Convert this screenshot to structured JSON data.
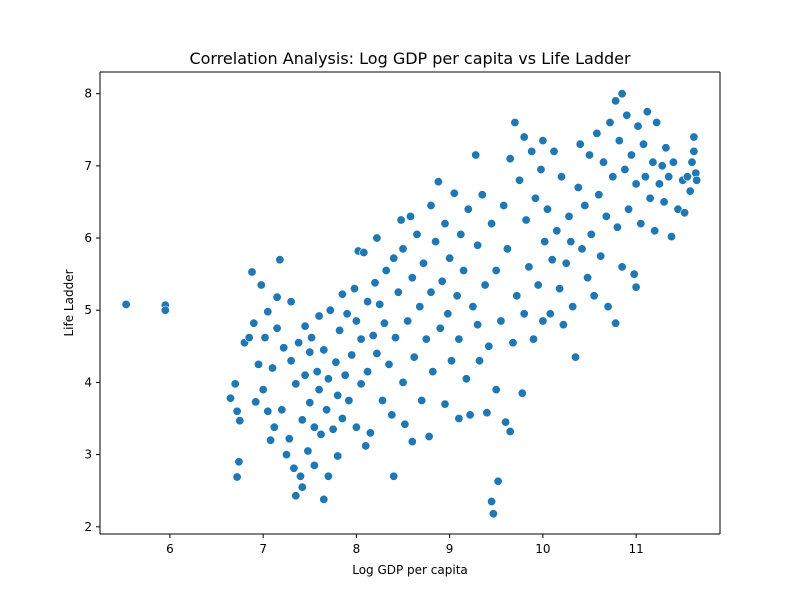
{
  "chart_data": {
    "type": "scatter",
    "title": "Correlation Analysis: Log GDP per capita vs Life Ladder",
    "xlabel": "Log GDP per capita",
    "ylabel": "Life Ladder",
    "xlim": [
      5.25,
      11.9
    ],
    "ylim": [
      1.9,
      8.3
    ],
    "xticks": [
      6,
      7,
      8,
      9,
      10,
      11
    ],
    "yticks": [
      2,
      3,
      4,
      5,
      6,
      7,
      8
    ],
    "grid": false,
    "legend": "none",
    "series": [
      {
        "color": "#1f77b4",
        "points": [
          [
            5.53,
            5.08
          ],
          [
            5.95,
            5.07
          ],
          [
            5.95,
            5.0
          ],
          [
            6.65,
            3.78
          ],
          [
            6.7,
            3.98
          ],
          [
            6.72,
            3.6
          ],
          [
            6.72,
            2.69
          ],
          [
            6.74,
            2.9
          ],
          [
            6.75,
            3.47
          ],
          [
            6.8,
            4.55
          ],
          [
            6.85,
            4.62
          ],
          [
            6.88,
            5.53
          ],
          [
            6.9,
            4.82
          ],
          [
            6.92,
            3.73
          ],
          [
            6.95,
            4.25
          ],
          [
            6.98,
            5.35
          ],
          [
            7.0,
            3.9
          ],
          [
            7.02,
            4.62
          ],
          [
            7.05,
            4.98
          ],
          [
            7.05,
            3.6
          ],
          [
            7.08,
            3.2
          ],
          [
            7.1,
            4.2
          ],
          [
            7.12,
            3.38
          ],
          [
            7.15,
            5.18
          ],
          [
            7.15,
            4.75
          ],
          [
            7.18,
            5.7
          ],
          [
            7.2,
            3.62
          ],
          [
            7.22,
            4.48
          ],
          [
            7.25,
            3.0
          ],
          [
            7.28,
            3.22
          ],
          [
            7.3,
            5.12
          ],
          [
            7.3,
            4.3
          ],
          [
            7.33,
            2.81
          ],
          [
            7.35,
            2.43
          ],
          [
            7.35,
            3.98
          ],
          [
            7.38,
            4.55
          ],
          [
            7.4,
            2.7
          ],
          [
            7.42,
            2.55
          ],
          [
            7.42,
            3.48
          ],
          [
            7.45,
            4.78
          ],
          [
            7.45,
            4.1
          ],
          [
            7.48,
            3.05
          ],
          [
            7.5,
            4.42
          ],
          [
            7.5,
            3.72
          ],
          [
            7.52,
            4.62
          ],
          [
            7.55,
            2.85
          ],
          [
            7.55,
            3.38
          ],
          [
            7.58,
            4.15
          ],
          [
            7.6,
            4.92
          ],
          [
            7.6,
            3.9
          ],
          [
            7.62,
            3.28
          ],
          [
            7.65,
            2.38
          ],
          [
            7.65,
            4.45
          ],
          [
            7.68,
            3.62
          ],
          [
            7.7,
            2.7
          ],
          [
            7.7,
            4.05
          ],
          [
            7.72,
            5.0
          ],
          [
            7.75,
            3.35
          ],
          [
            7.78,
            4.28
          ],
          [
            7.8,
            2.98
          ],
          [
            7.8,
            3.82
          ],
          [
            7.82,
            4.72
          ],
          [
            7.85,
            5.22
          ],
          [
            7.85,
            3.5
          ],
          [
            7.88,
            4.1
          ],
          [
            7.9,
            4.95
          ],
          [
            7.92,
            3.75
          ],
          [
            7.95,
            4.38
          ],
          [
            7.98,
            5.3
          ],
          [
            8.0,
            3.38
          ],
          [
            8.0,
            4.85
          ],
          [
            8.02,
            5.82
          ],
          [
            8.05,
            3.98
          ],
          [
            8.05,
            4.6
          ],
          [
            8.08,
            5.8
          ],
          [
            8.1,
            3.12
          ],
          [
            8.12,
            5.12
          ],
          [
            8.12,
            4.15
          ],
          [
            8.15,
            3.3
          ],
          [
            8.18,
            4.65
          ],
          [
            8.2,
            5.38
          ],
          [
            8.22,
            4.4
          ],
          [
            8.22,
            6.0
          ],
          [
            8.25,
            5.08
          ],
          [
            8.28,
            3.75
          ],
          [
            8.3,
            4.82
          ],
          [
            8.32,
            5.55
          ],
          [
            8.35,
            4.25
          ],
          [
            8.38,
            3.55
          ],
          [
            8.4,
            5.72
          ],
          [
            8.4,
            2.7
          ],
          [
            8.42,
            4.62
          ],
          [
            8.45,
            5.25
          ],
          [
            8.48,
            6.25
          ],
          [
            8.5,
            4.0
          ],
          [
            8.5,
            5.85
          ],
          [
            8.52,
            3.42
          ],
          [
            8.55,
            4.85
          ],
          [
            8.58,
            6.3
          ],
          [
            8.6,
            3.18
          ],
          [
            8.6,
            5.45
          ],
          [
            8.62,
            4.35
          ],
          [
            8.65,
            6.05
          ],
          [
            8.68,
            5.05
          ],
          [
            8.7,
            3.75
          ],
          [
            8.72,
            5.65
          ],
          [
            8.75,
            4.6
          ],
          [
            8.78,
            3.25
          ],
          [
            8.8,
            6.45
          ],
          [
            8.8,
            5.25
          ],
          [
            8.82,
            4.15
          ],
          [
            8.85,
            5.95
          ],
          [
            8.88,
            6.78
          ],
          [
            8.9,
            4.75
          ],
          [
            8.92,
            5.4
          ],
          [
            8.95,
            3.7
          ],
          [
            8.95,
            6.2
          ],
          [
            8.98,
            4.95
          ],
          [
            9.0,
            5.72
          ],
          [
            9.02,
            4.3
          ],
          [
            9.05,
            6.62
          ],
          [
            9.08,
            5.2
          ],
          [
            9.1,
            3.5
          ],
          [
            9.1,
            4.6
          ],
          [
            9.12,
            6.05
          ],
          [
            9.15,
            5.55
          ],
          [
            9.18,
            4.05
          ],
          [
            9.2,
            6.4
          ],
          [
            9.22,
            3.55
          ],
          [
            9.25,
            5.05
          ],
          [
            9.28,
            7.15
          ],
          [
            9.3,
            4.8
          ],
          [
            9.3,
            5.9
          ],
          [
            9.32,
            4.3
          ],
          [
            9.35,
            6.6
          ],
          [
            9.38,
            5.35
          ],
          [
            9.4,
            3.58
          ],
          [
            9.42,
            4.5
          ],
          [
            9.45,
            6.2
          ],
          [
            9.45,
            2.35
          ],
          [
            9.47,
            2.18
          ],
          [
            9.5,
            5.55
          ],
          [
            9.52,
            2.63
          ],
          [
            9.5,
            3.9
          ],
          [
            9.55,
            4.85
          ],
          [
            9.58,
            6.45
          ],
          [
            9.6,
            3.45
          ],
          [
            9.62,
            5.85
          ],
          [
            9.65,
            3.32
          ],
          [
            9.65,
            7.1
          ],
          [
            9.68,
            4.55
          ],
          [
            9.7,
            7.6
          ],
          [
            9.72,
            5.2
          ],
          [
            9.75,
            6.8
          ],
          [
            9.78,
            3.85
          ],
          [
            9.8,
            4.95
          ],
          [
            9.8,
            7.4
          ],
          [
            9.82,
            6.25
          ],
          [
            9.85,
            5.6
          ],
          [
            9.88,
            7.2
          ],
          [
            9.9,
            4.6
          ],
          [
            9.92,
            6.55
          ],
          [
            9.95,
            5.35
          ],
          [
            9.98,
            6.95
          ],
          [
            10.0,
            4.85
          ],
          [
            10.0,
            7.35
          ],
          [
            10.02,
            5.95
          ],
          [
            10.05,
            6.4
          ],
          [
            10.08,
            4.95
          ],
          [
            10.1,
            5.7
          ],
          [
            10.12,
            7.2
          ],
          [
            10.15,
            6.1
          ],
          [
            10.18,
            5.3
          ],
          [
            10.2,
            6.85
          ],
          [
            10.22,
            4.8
          ],
          [
            10.25,
            5.65
          ],
          [
            10.28,
            6.3
          ],
          [
            10.3,
            5.95
          ],
          [
            10.32,
            5.05
          ],
          [
            10.35,
            4.35
          ],
          [
            10.38,
            6.7
          ],
          [
            10.4,
            7.3
          ],
          [
            10.42,
            5.85
          ],
          [
            10.45,
            6.45
          ],
          [
            10.48,
            5.45
          ],
          [
            10.5,
            7.15
          ],
          [
            10.52,
            6.05
          ],
          [
            10.55,
            5.2
          ],
          [
            10.58,
            7.45
          ],
          [
            10.6,
            6.6
          ],
          [
            10.62,
            5.75
          ],
          [
            10.65,
            7.05
          ],
          [
            10.68,
            6.3
          ],
          [
            10.7,
            5.05
          ],
          [
            10.72,
            7.6
          ],
          [
            10.75,
            6.85
          ],
          [
            10.78,
            4.82
          ],
          [
            10.78,
            7.9
          ],
          [
            10.8,
            6.15
          ],
          [
            10.82,
            7.35
          ],
          [
            10.85,
            8.0
          ],
          [
            10.85,
            5.6
          ],
          [
            10.88,
            6.95
          ],
          [
            10.9,
            7.7
          ],
          [
            10.92,
            6.4
          ],
          [
            10.95,
            7.15
          ],
          [
            10.98,
            5.5
          ],
          [
            11.0,
            6.75
          ],
          [
            11.0,
            5.32
          ],
          [
            11.02,
            7.55
          ],
          [
            11.05,
            6.2
          ],
          [
            11.08,
            7.3
          ],
          [
            11.1,
            6.85
          ],
          [
            11.12,
            7.75
          ],
          [
            11.15,
            6.55
          ],
          [
            11.18,
            7.05
          ],
          [
            11.2,
            6.1
          ],
          [
            11.22,
            7.6
          ],
          [
            11.25,
            6.75
          ],
          [
            11.28,
            7.0
          ],
          [
            11.3,
            6.5
          ],
          [
            11.32,
            7.25
          ],
          [
            11.35,
            6.85
          ],
          [
            11.38,
            6.02
          ],
          [
            11.4,
            7.05
          ],
          [
            11.45,
            6.4
          ],
          [
            11.5,
            6.8
          ],
          [
            11.52,
            6.35
          ],
          [
            11.55,
            6.85
          ],
          [
            11.58,
            6.65
          ],
          [
            11.6,
            7.05
          ],
          [
            11.62,
            7.4
          ],
          [
            11.62,
            7.2
          ],
          [
            11.64,
            6.9
          ],
          [
            11.65,
            6.8
          ]
        ]
      }
    ]
  }
}
